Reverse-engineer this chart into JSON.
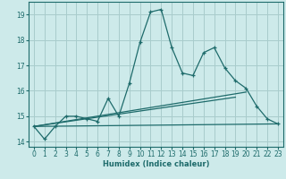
{
  "xlabel": "Humidex (Indice chaleur)",
  "background_color": "#cdeaea",
  "grid_color": "#a8cccc",
  "line_color": "#1e6b6b",
  "xlim": [
    -0.5,
    23.5
  ],
  "ylim": [
    13.8,
    19.5
  ],
  "yticks": [
    14,
    15,
    16,
    17,
    18,
    19
  ],
  "xticks": [
    0,
    1,
    2,
    3,
    4,
    5,
    6,
    7,
    8,
    9,
    10,
    11,
    12,
    13,
    14,
    15,
    16,
    17,
    18,
    19,
    20,
    21,
    22,
    23
  ],
  "series1_x": [
    0,
    1,
    2,
    3,
    4,
    5,
    6,
    7,
    8,
    9,
    10,
    11,
    12,
    13,
    14,
    15,
    16,
    17,
    18,
    19,
    20,
    21,
    22,
    23
  ],
  "series1_y": [
    14.6,
    14.1,
    14.6,
    15.0,
    15.0,
    14.9,
    14.8,
    15.7,
    15.0,
    16.3,
    17.9,
    19.1,
    19.2,
    17.7,
    16.7,
    16.6,
    17.5,
    17.7,
    16.9,
    16.4,
    16.1,
    15.4,
    14.9,
    14.7
  ],
  "trend1_x": [
    0,
    23
  ],
  "trend1_y": [
    14.6,
    14.7
  ],
  "trend2_x": [
    0,
    20
  ],
  "trend2_y": [
    14.6,
    15.95
  ],
  "trend3_x": [
    0,
    19
  ],
  "trend3_y": [
    14.6,
    15.75
  ]
}
